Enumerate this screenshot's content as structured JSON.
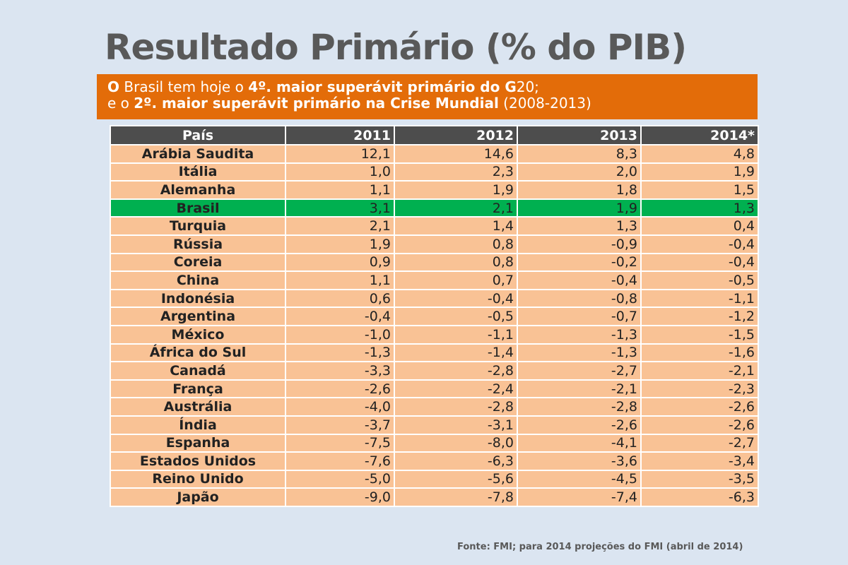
{
  "title": "Resultado Primário (% do PIB)",
  "banner": {
    "line1": [
      {
        "text": "O",
        "bold": true
      },
      {
        "text": " Brasil tem hoje o ",
        "bold": false
      },
      {
        "text": "4º. maior superávit primário do G",
        "bold": true
      },
      {
        "text": "20;",
        "bold": false
      }
    ],
    "line2": [
      {
        "text": "e o ",
        "bold": false
      },
      {
        "text": "2º. maior superávit primário na Crise Mundial",
        "bold": true
      },
      {
        "text": " (2008-2013)",
        "bold": false
      }
    ],
    "color": "#e36c09"
  },
  "table": {
    "headers": [
      "País",
      "2011",
      "2012",
      "2013",
      "2014*"
    ],
    "highlight_color": "#00b050",
    "rows": [
      {
        "country": "Arábia Saudita",
        "values": [
          "12,1",
          "14,6",
          "8,3",
          "4,8"
        ]
      },
      {
        "country": "Itália",
        "values": [
          "1,0",
          "2,3",
          "2,0",
          "1,9"
        ]
      },
      {
        "country": "Alemanha",
        "values": [
          "1,1",
          "1,9",
          "1,8",
          "1,5"
        ]
      },
      {
        "country": "Brasil",
        "values": [
          "3,1",
          "2,1",
          "1,9",
          "1,3"
        ],
        "highlight": true
      },
      {
        "country": "Turquia",
        "values": [
          "2,1",
          "1,4",
          "1,3",
          "0,4"
        ]
      },
      {
        "country": "Rússia",
        "values": [
          "1,9",
          "0,8",
          "-0,9",
          "-0,4"
        ]
      },
      {
        "country": "Coreia",
        "values": [
          "0,9",
          "0,8",
          "-0,2",
          "-0,4"
        ]
      },
      {
        "country": "China",
        "values": [
          "1,1",
          "0,7",
          "-0,4",
          "-0,5"
        ]
      },
      {
        "country": "Indonésia",
        "values": [
          "0,6",
          "-0,4",
          "-0,8",
          "-1,1"
        ]
      },
      {
        "country": "Argentina",
        "values": [
          "-0,4",
          "-0,5",
          "-0,7",
          "-1,2"
        ]
      },
      {
        "country": "México",
        "values": [
          "-1,0",
          "-1,1",
          "-1,3",
          "-1,5"
        ]
      },
      {
        "country": "África do Sul",
        "values": [
          "-1,3",
          "-1,4",
          "-1,3",
          "-1,6"
        ]
      },
      {
        "country": "Canadá",
        "values": [
          "-3,3",
          "-2,8",
          "-2,7",
          "-2,1"
        ]
      },
      {
        "country": "França",
        "values": [
          "-2,6",
          "-2,4",
          "-2,1",
          "-2,3"
        ]
      },
      {
        "country": "Austrália",
        "values": [
          "-4,0",
          "-2,8",
          "-2,8",
          "-2,6"
        ]
      },
      {
        "country": "Índia",
        "values": [
          "-3,7",
          "-3,1",
          "-2,6",
          "-2,6"
        ]
      },
      {
        "country": "Espanha",
        "values": [
          "-7,5",
          "-8,0",
          "-4,1",
          "-2,7"
        ]
      },
      {
        "country": "Estados Unidos",
        "values": [
          "-7,6",
          "-6,3",
          "-3,6",
          "-3,4"
        ]
      },
      {
        "country": "Reino Unido",
        "values": [
          "-5,0",
          "-5,6",
          "-4,5",
          "-3,5"
        ]
      },
      {
        "country": "Japão",
        "values": [
          "-9,0",
          "-7,8",
          "-7,4",
          "-6,3"
        ]
      }
    ]
  },
  "source": "Fonte: FMI; para  2014 projeções do FMI (abril de 2014)"
}
